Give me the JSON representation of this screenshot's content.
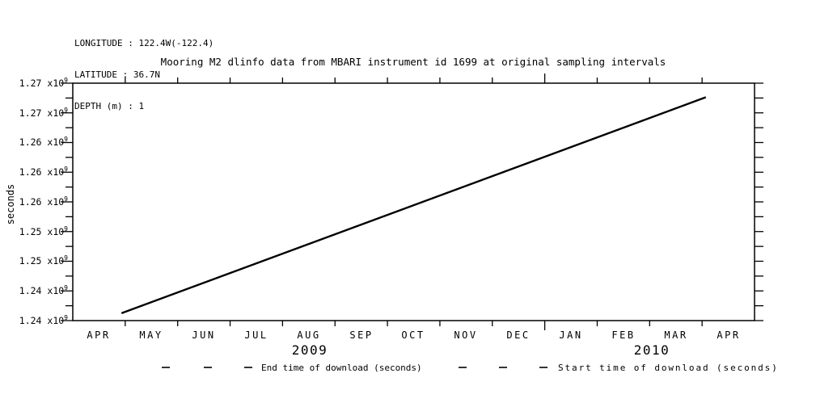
{
  "header": {
    "longitude": "LONGITUDE : 122.4W(-122.4)",
    "latitude": "LATITUDE : 36.7N",
    "depth": "DEPTH (m) : 1"
  },
  "title": "Mooring M2 dlinfo data from MBARI instrument id 1699 at original sampling intervals",
  "y_axis": {
    "label": "seconds",
    "tick_labels": [
      {
        "base": "1.27 x10",
        "exp": "9"
      },
      {
        "base": "1.27 x10",
        "exp": "9"
      },
      {
        "base": "1.26 x10",
        "exp": "9"
      },
      {
        "base": "1.26 x10",
        "exp": "9"
      },
      {
        "base": "1.26 x10",
        "exp": "9"
      },
      {
        "base": "1.25 x10",
        "exp": "9"
      },
      {
        "base": "1.25 x10",
        "exp": "9"
      },
      {
        "base": "1.24 x10",
        "exp": "9"
      },
      {
        "base": "1.24 x10",
        "exp": "9"
      }
    ]
  },
  "x_axis": {
    "months": [
      "APR",
      "MAY",
      "JUN",
      "JUL",
      "AUG",
      "SEP",
      "OCT",
      "NOV",
      "DEC",
      "JAN",
      "FEB",
      "MAR",
      "APR"
    ],
    "years": [
      "2009",
      "2010"
    ],
    "year_boundary_index": 9
  },
  "legend": {
    "entries": [
      {
        "label": "End time of download (seconds)",
        "style": "dashed"
      },
      {
        "label": "Start time of download (seconds)",
        "style": "dashed"
      }
    ]
  },
  "colors": {
    "foreground": "#000000",
    "background": "#ffffff"
  },
  "chart_data": {
    "type": "line",
    "title": "Mooring M2 dlinfo data from MBARI instrument id 1699 at original sampling intervals",
    "xlabel": "",
    "ylabel": "seconds",
    "x_categories": [
      "APR 2009",
      "MAY 2009",
      "JUN 2009",
      "JUL 2009",
      "AUG 2009",
      "SEP 2009",
      "OCT 2009",
      "NOV 2009",
      "DEC 2009",
      "JAN 2010",
      "FEB 2010",
      "MAR 2010",
      "APR 2010"
    ],
    "ylim": [
      1240000000,
      1272000000
    ],
    "y_tick_values": [
      1240000000,
      1244000000,
      1248000000,
      1252000000,
      1256000000,
      1260000000,
      1264000000,
      1268000000,
      1272000000
    ],
    "y_tick_display_rounding": "2 decimals of x10^9, so ticks show 1.24,1.24,1.25,1.25,1.26,1.26,1.26,1.27,1.27 from bottom",
    "grid": false,
    "legend_position": "below plot",
    "series": [
      {
        "name": "End time of download (seconds)",
        "style": "dashed",
        "color": "#000000",
        "points": [
          {
            "x_month_frac": 0.93,
            "y": 1241000000
          },
          {
            "x_month_frac": 12.07,
            "y": 1270100000
          }
        ]
      },
      {
        "name": "Start time of download (seconds)",
        "style": "dashed",
        "color": "#000000",
        "points": [
          {
            "x_month_frac": 0.93,
            "y": 1241000000
          },
          {
            "x_month_frac": 12.07,
            "y": 1270100000
          }
        ]
      }
    ],
    "note": "Both series are straight, coincident diagonal lines (download start and end times are indistinguishable at this scale); x_month_frac 0 = left axis at start of APR 2009, 13 = right axis."
  }
}
